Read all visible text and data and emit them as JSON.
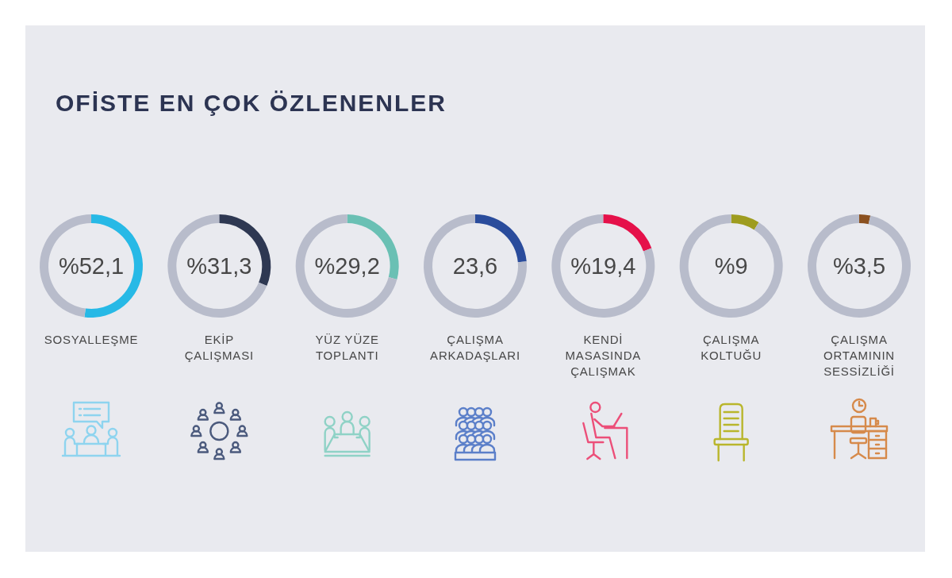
{
  "chart_data": [
    {
      "type": "other",
      "title": "OFİSTE EN ÇOK ÖZLENENLER"
    },
    {
      "type": "donut",
      "title": "SOSYALLEŞME",
      "categories": [
        null,
        null
      ],
      "values": [
        52.1,
        47.9
      ],
      "colors": [
        "#27b9e6",
        "#b8bccb"
      ],
      "annotations": [
        "%52,1"
      ]
    },
    {
      "type": "donut",
      "title": "EKİP ÇALIŞMASI",
      "categories": [
        null,
        null
      ],
      "values": [
        31.3,
        68.7
      ],
      "colors": [
        "#2e3852",
        "#b8bccb"
      ],
      "annotations": [
        "%31,3"
      ]
    },
    {
      "type": "donut",
      "title": "YÜZ YÜZE TOPLANTI",
      "categories": [
        null,
        null
      ],
      "values": [
        29.2,
        70.8
      ],
      "colors": [
        "#6ac0b4",
        "#b8bccb"
      ],
      "annotations": [
        "%29,2"
      ]
    },
    {
      "type": "donut",
      "title": "ÇALIŞMA ARKADAŞLARI",
      "categories": [
        null,
        null
      ],
      "values": [
        23.6,
        76.4
      ],
      "colors": [
        "#2a4c9c",
        "#b8bccb"
      ],
      "annotations": [
        "23,6"
      ]
    },
    {
      "type": "donut",
      "title": "KENDİ MASASINDA ÇALIŞMAK",
      "categories": [
        null,
        null
      ],
      "values": [
        19.4,
        80.6
      ],
      "colors": [
        "#e5114a",
        "#b8bccb"
      ],
      "annotations": [
        "%19,4"
      ]
    },
    {
      "type": "donut",
      "title": "ÇALIŞMA KOLTUĞU",
      "categories": [
        null,
        null
      ],
      "values": [
        9,
        91
      ],
      "colors": [
        "#9e9c1f",
        "#b8bccb"
      ],
      "annotations": [
        "%9"
      ]
    },
    {
      "type": "donut",
      "title": "ÇALIŞMA ORTAMININ SESSİZLİĞİ",
      "categories": [
        null,
        null
      ],
      "values": [
        3.5,
        96.5
      ],
      "colors": [
        "#8b5120",
        "#b8bccb"
      ],
      "annotations": [
        "%3,5"
      ]
    }
  ]
}
